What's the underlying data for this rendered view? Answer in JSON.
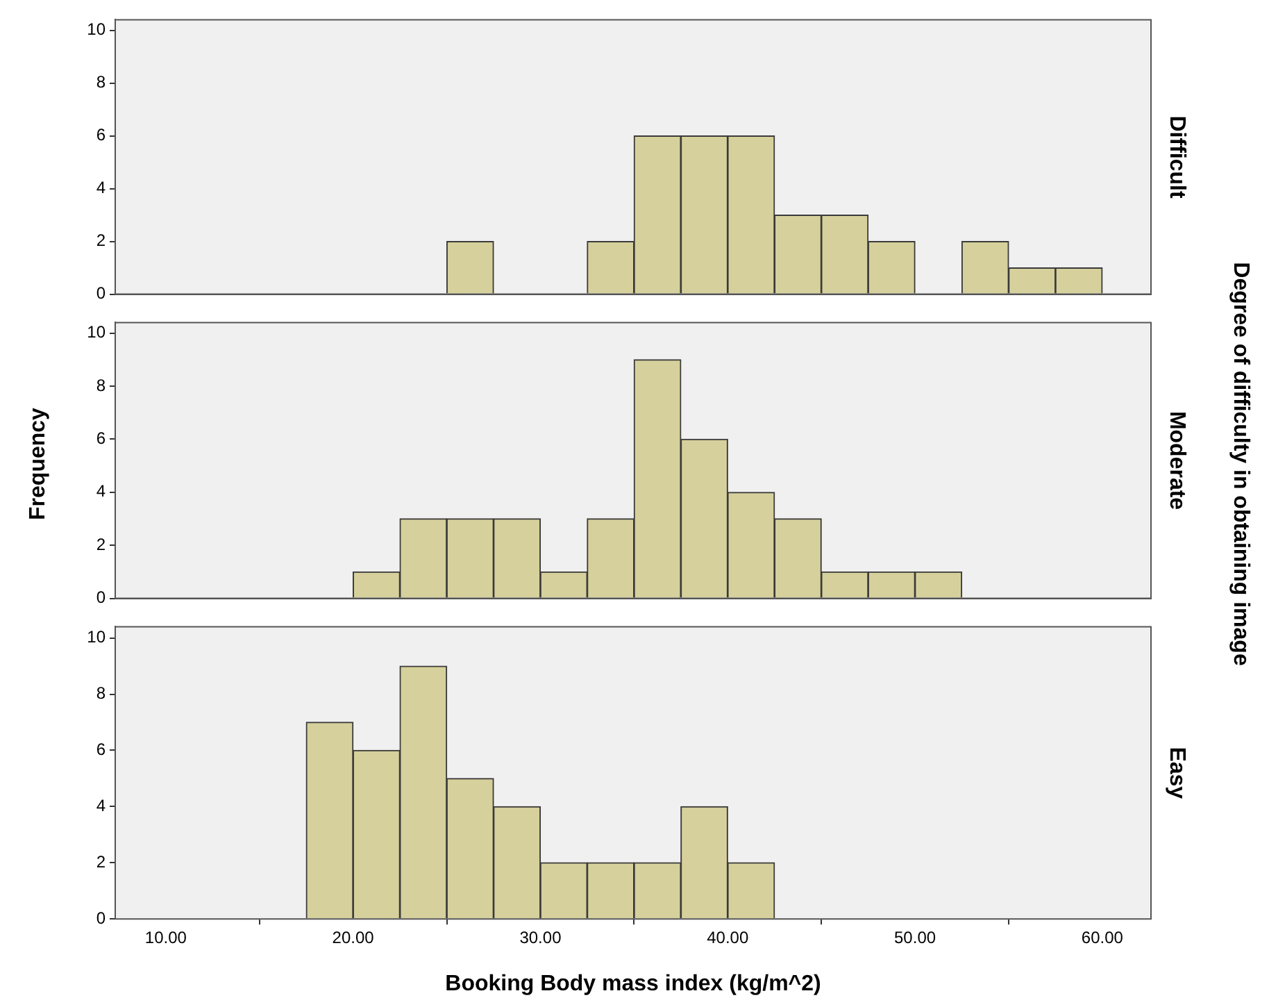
{
  "chart_data": [
    {
      "type": "histogram",
      "y2label": "Difficult",
      "bins": [
        25,
        27.5,
        30,
        32.5,
        35,
        37.5,
        40,
        42.5,
        45,
        47.5,
        50,
        52.5,
        55,
        57.5,
        60
      ],
      "values": [
        2,
        0,
        0,
        2,
        6,
        6,
        6,
        3,
        3,
        2,
        0,
        2,
        1,
        1
      ],
      "color": "#d6d09c",
      "xlim": [
        7.3,
        62.6
      ],
      "ylim": [
        0,
        10.4
      ],
      "yticks": [
        0,
        2,
        4,
        6,
        8,
        10
      ],
      "tick_labels": "y"
    },
    {
      "type": "histogram",
      "y2label": "Moderate",
      "ylabel": "Frequency",
      "annotations": [
        "Degree of difficulty in obtaining image"
      ],
      "bins": [
        20,
        22.5,
        25,
        27.5,
        30,
        32.5,
        35,
        37.5,
        40,
        42.5,
        45,
        47.5,
        50,
        52.5
      ],
      "values": [
        1,
        3,
        3,
        3,
        1,
        3,
        9,
        6,
        4,
        3,
        1,
        1,
        1
      ],
      "color": "#d6d09c",
      "xlim": [
        7.3,
        62.6
      ],
      "ylim": [
        0,
        10.4
      ],
      "yticks": [
        0,
        2,
        4,
        6,
        8,
        10
      ],
      "tick_labels": "y"
    },
    {
      "type": "histogram",
      "y2label": "Easy",
      "xlabel": "Booking Body mass index (kg/m^2)",
      "bins": [
        17.5,
        20,
        22.5,
        25,
        27.5,
        30,
        32.5,
        35,
        37.5,
        40,
        42.5
      ],
      "values": [
        7,
        6,
        9,
        5,
        4,
        2,
        2,
        2,
        4,
        2
      ],
      "color": "#d6d09c",
      "xlim": [
        7.3,
        62.6
      ],
      "xticks": [
        {
          "value": 10,
          "label": "10.00"
        },
        {
          "value": 20,
          "label": "20.00"
        },
        {
          "value": 30,
          "label": "30.00"
        },
        {
          "value": 40,
          "label": "40.00"
        },
        {
          "value": 50,
          "label": "50.00"
        },
        {
          "value": 60,
          "label": "60.00"
        }
      ],
      "ylim": [
        0,
        10.4
      ],
      "yticks": [
        0,
        2,
        4,
        6,
        8,
        10
      ]
    }
  ]
}
